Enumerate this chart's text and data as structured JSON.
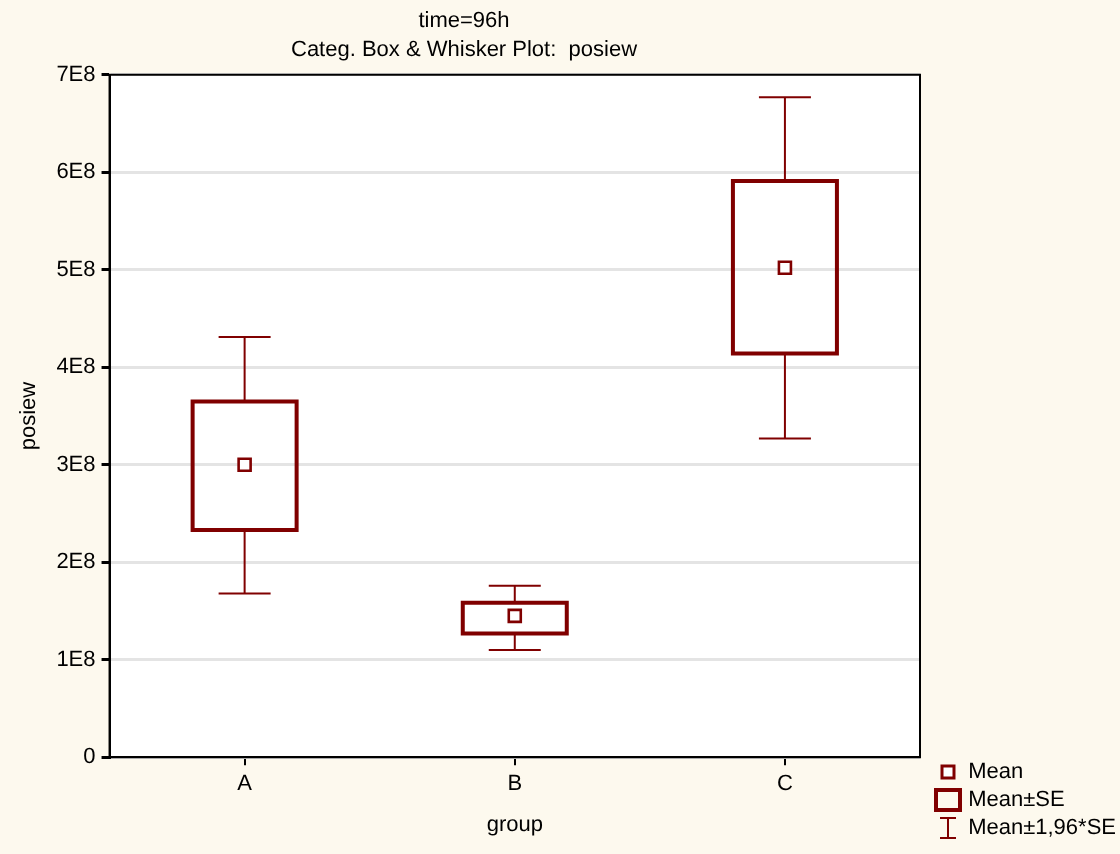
{
  "chart_data": {
    "type": "box",
    "title": "time=96h",
    "subtitle": "Categ. Box & Whisker Plot:  posiew",
    "xlabel": "group",
    "ylabel": "posiew",
    "categories": [
      "A",
      "B",
      "C"
    ],
    "color": "#800000",
    "boxes": [
      {
        "low": 168000000,
        "q1": 233000000,
        "mean": 300000000,
        "q3": 365000000,
        "high": 431000000
      },
      {
        "low": 110000000,
        "q1": 127000000,
        "mean": 145000000,
        "q3": 158500000,
        "high": 176000000
      },
      {
        "low": 327000000,
        "q1": 414000000,
        "mean": 502000000,
        "q3": 591000000,
        "high": 677000000
      }
    ],
    "ylim": [
      0,
      700000000
    ],
    "yticks": [
      0,
      {
        "value": 100000000,
        "label": "1E8"
      },
      {
        "value": 200000000,
        "label": "2E8"
      },
      {
        "value": 300000000,
        "label": "3E8"
      },
      {
        "value": 400000000,
        "label": "4E8"
      },
      {
        "value": 500000000,
        "label": "5E8"
      },
      {
        "value": 600000000,
        "label": "6E8"
      },
      {
        "value": 700000000,
        "label": "7E8"
      }
    ],
    "grid": "y",
    "marker": "square",
    "annotations": [
      "Mean",
      "Mean±SE",
      "Mean±1,96*SE"
    ]
  }
}
